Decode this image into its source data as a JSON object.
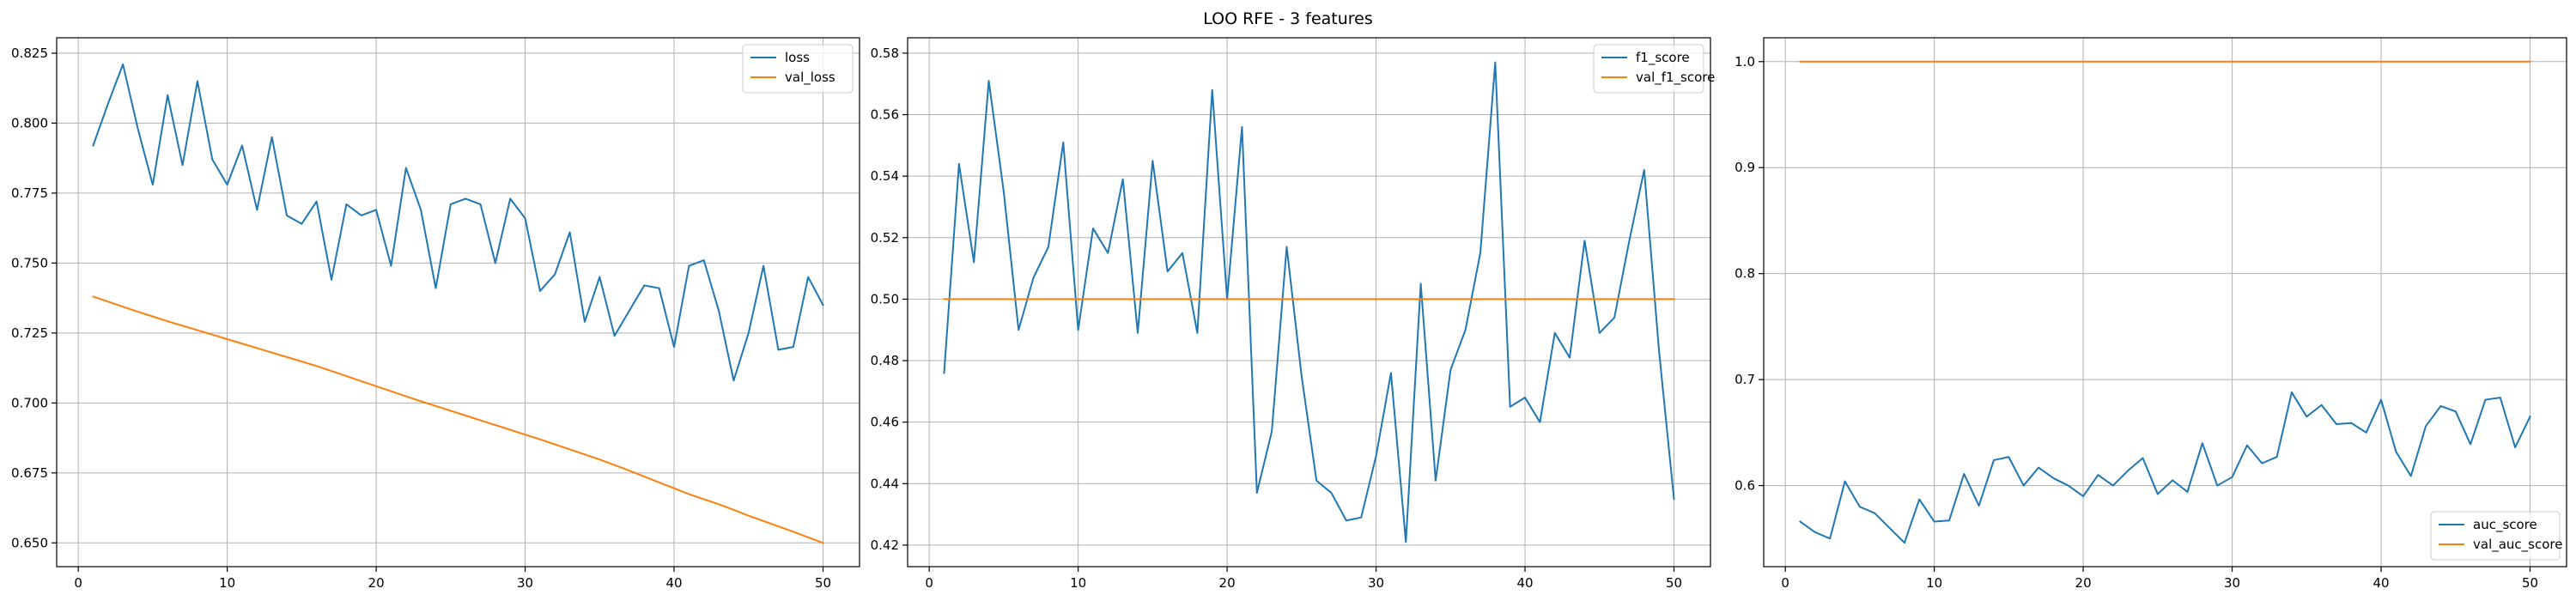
{
  "figure": {
    "title": "LOO RFE - 3 features"
  },
  "chart_data": [
    {
      "type": "line",
      "xlabel": "",
      "ylabel": "",
      "xlim": [
        -1.45,
        52.45
      ],
      "ylim": [
        0.6415,
        0.8305
      ],
      "xticks": [
        0,
        10,
        20,
        30,
        40,
        50
      ],
      "yticks": [
        0.65,
        0.675,
        0.7,
        0.725,
        0.75,
        0.775,
        0.8,
        0.825
      ],
      "ytick_decimals": 3,
      "grid": true,
      "legend": "top-right",
      "x": [
        1,
        2,
        3,
        4,
        5,
        6,
        7,
        8,
        9,
        10,
        11,
        12,
        13,
        14,
        15,
        16,
        17,
        18,
        19,
        20,
        21,
        22,
        23,
        24,
        25,
        26,
        27,
        28,
        29,
        30,
        31,
        32,
        33,
        34,
        35,
        36,
        37,
        38,
        39,
        40,
        41,
        42,
        43,
        44,
        45,
        46,
        47,
        48,
        49,
        50
      ],
      "series": [
        {
          "name": "loss",
          "color": "#1f77b4",
          "values": [
            0.792,
            0.807,
            0.821,
            0.798,
            0.778,
            0.81,
            0.785,
            0.815,
            0.787,
            0.778,
            0.792,
            0.769,
            0.795,
            0.767,
            0.764,
            0.772,
            0.744,
            0.771,
            0.767,
            0.769,
            0.749,
            0.784,
            0.769,
            0.741,
            0.771,
            0.773,
            0.771,
            0.75,
            0.773,
            0.766,
            0.74,
            0.746,
            0.761,
            0.729,
            0.745,
            0.724,
            0.733,
            0.742,
            0.741,
            0.72,
            0.749,
            0.751,
            0.733,
            0.708,
            0.725,
            0.749,
            0.719,
            0.72,
            0.745,
            0.735
          ]
        },
        {
          "name": "val_loss",
          "color": "#ff7f0e",
          "values": [
            0.738,
            0.7362,
            0.7344,
            0.7326,
            0.7309,
            0.7292,
            0.7276,
            0.726,
            0.7244,
            0.7228,
            0.7212,
            0.7196,
            0.718,
            0.7164,
            0.7148,
            0.7132,
            0.7114,
            0.7096,
            0.7078,
            0.706,
            0.7042,
            0.7024,
            0.7006,
            0.6989,
            0.6972,
            0.6955,
            0.6938,
            0.6921,
            0.6904,
            0.6887,
            0.687,
            0.6852,
            0.6834,
            0.6816,
            0.6798,
            0.6778,
            0.6758,
            0.6737,
            0.6716,
            0.6695,
            0.6674,
            0.6656,
            0.6638,
            0.6618,
            0.6597,
            0.6578,
            0.6559,
            0.654,
            0.652,
            0.65
          ]
        }
      ]
    },
    {
      "type": "line",
      "xlabel": "",
      "ylabel": "",
      "xlim": [
        -1.45,
        52.45
      ],
      "ylim": [
        0.413,
        0.585
      ],
      "xticks": [
        0,
        10,
        20,
        30,
        40,
        50
      ],
      "yticks": [
        0.42,
        0.44,
        0.46,
        0.48,
        0.5,
        0.52,
        0.54,
        0.56,
        0.58
      ],
      "ytick_decimals": 2,
      "grid": true,
      "legend": "top-right",
      "x": [
        1,
        2,
        3,
        4,
        5,
        6,
        7,
        8,
        9,
        10,
        11,
        12,
        13,
        14,
        15,
        16,
        17,
        18,
        19,
        20,
        21,
        22,
        23,
        24,
        25,
        26,
        27,
        28,
        29,
        30,
        31,
        32,
        33,
        34,
        35,
        36,
        37,
        38,
        39,
        40,
        41,
        42,
        43,
        44,
        45,
        46,
        47,
        48,
        49,
        50
      ],
      "series": [
        {
          "name": "f1_score",
          "color": "#1f77b4",
          "values": [
            0.476,
            0.544,
            0.512,
            0.571,
            0.535,
            0.49,
            0.507,
            0.517,
            0.551,
            0.49,
            0.523,
            0.515,
            0.539,
            0.489,
            0.545,
            0.509,
            0.515,
            0.489,
            0.568,
            0.5,
            0.556,
            0.437,
            0.457,
            0.517,
            0.475,
            0.441,
            0.437,
            0.428,
            0.429,
            0.449,
            0.476,
            0.421,
            0.505,
            0.441,
            0.477,
            0.49,
            0.515,
            0.577,
            0.465,
            0.468,
            0.46,
            0.489,
            0.481,
            0.519,
            0.489,
            0.494,
            0.519,
            0.542,
            0.483,
            0.435
          ]
        },
        {
          "name": "val_f1_score",
          "color": "#ff7f0e",
          "values": [
            0.5,
            0.5,
            0.5,
            0.5,
            0.5,
            0.5,
            0.5,
            0.5,
            0.5,
            0.5,
            0.5,
            0.5,
            0.5,
            0.5,
            0.5,
            0.5,
            0.5,
            0.5,
            0.5,
            0.5,
            0.5,
            0.5,
            0.5,
            0.5,
            0.5,
            0.5,
            0.5,
            0.5,
            0.5,
            0.5,
            0.5,
            0.5,
            0.5,
            0.5,
            0.5,
            0.5,
            0.5,
            0.5,
            0.5,
            0.5,
            0.5,
            0.5,
            0.5,
            0.5,
            0.5,
            0.5,
            0.5,
            0.5,
            0.5,
            0.5
          ]
        }
      ]
    },
    {
      "type": "line",
      "xlabel": "",
      "ylabel": "",
      "xlim": [
        -1.45,
        52.45
      ],
      "ylim": [
        0.5235,
        1.0225
      ],
      "xticks": [
        0,
        10,
        20,
        30,
        40,
        50
      ],
      "yticks": [
        0.6,
        0.7,
        0.8,
        0.9,
        1.0
      ],
      "ytick_decimals": 1,
      "grid": true,
      "legend": "bottom-right",
      "x": [
        1,
        2,
        3,
        4,
        5,
        6,
        7,
        8,
        9,
        10,
        11,
        12,
        13,
        14,
        15,
        16,
        17,
        18,
        19,
        20,
        21,
        22,
        23,
        24,
        25,
        26,
        27,
        28,
        29,
        30,
        31,
        32,
        33,
        34,
        35,
        36,
        37,
        38,
        39,
        40,
        41,
        42,
        43,
        44,
        45,
        46,
        47,
        48,
        49,
        50
      ],
      "series": [
        {
          "name": "auc_score",
          "color": "#1f77b4",
          "values": [
            0.566,
            0.556,
            0.55,
            0.604,
            0.58,
            0.574,
            0.56,
            0.546,
            0.587,
            0.566,
            0.567,
            0.611,
            0.581,
            0.624,
            0.627,
            0.6,
            0.617,
            0.607,
            0.6,
            0.59,
            0.61,
            0.6,
            0.614,
            0.626,
            0.592,
            0.605,
            0.594,
            0.64,
            0.6,
            0.608,
            0.638,
            0.621,
            0.627,
            0.688,
            0.665,
            0.676,
            0.658,
            0.659,
            0.65,
            0.681,
            0.632,
            0.609,
            0.656,
            0.675,
            0.67,
            0.639,
            0.681,
            0.683,
            0.636,
            0.665
          ]
        },
        {
          "name": "val_auc_score",
          "color": "#ff7f0e",
          "values": [
            1.0,
            1.0,
            1.0,
            1.0,
            1.0,
            1.0,
            1.0,
            1.0,
            1.0,
            1.0,
            1.0,
            1.0,
            1.0,
            1.0,
            1.0,
            1.0,
            1.0,
            1.0,
            1.0,
            1.0,
            1.0,
            1.0,
            1.0,
            1.0,
            1.0,
            1.0,
            1.0,
            1.0,
            1.0,
            1.0,
            1.0,
            1.0,
            1.0,
            1.0,
            1.0,
            1.0,
            1.0,
            1.0,
            1.0,
            1.0,
            1.0,
            1.0,
            1.0,
            1.0,
            1.0,
            1.0,
            1.0,
            1.0,
            1.0,
            1.0
          ]
        }
      ]
    }
  ]
}
